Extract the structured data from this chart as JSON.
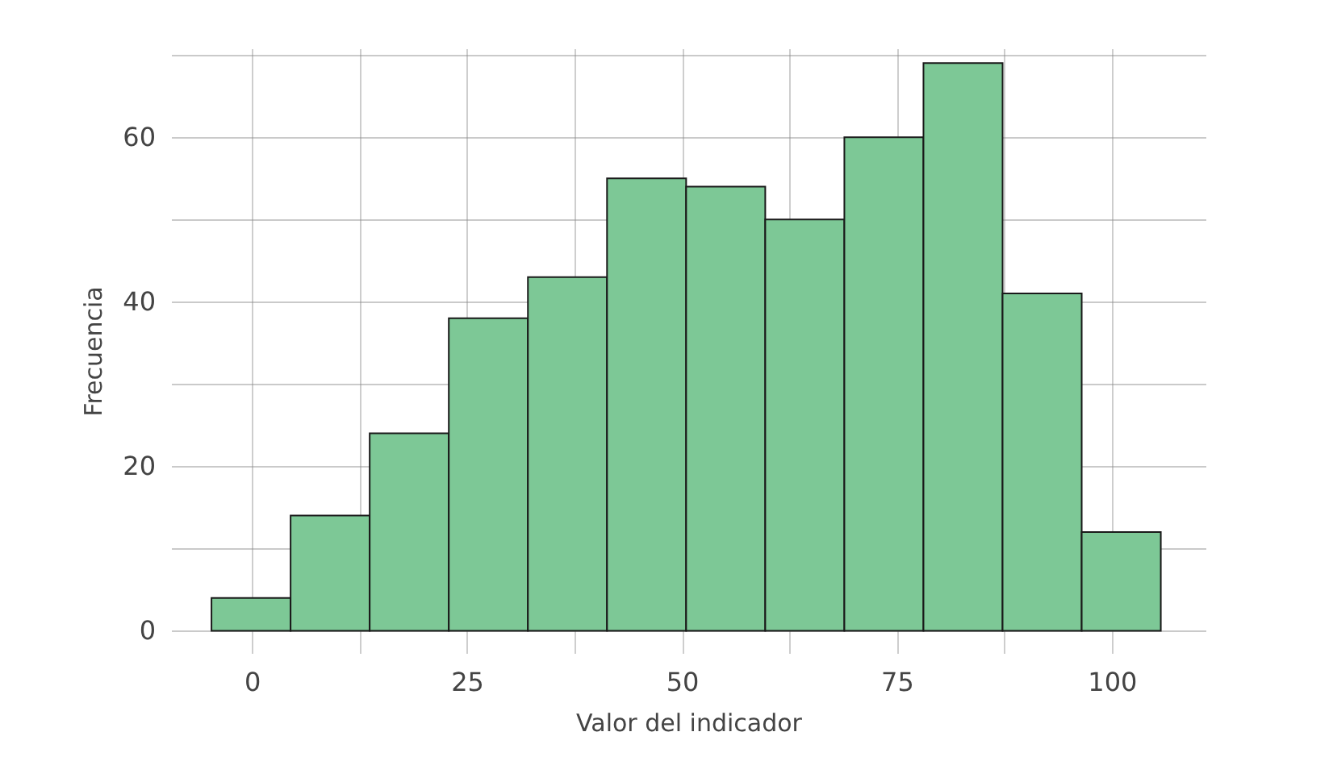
{
  "chart_data": {
    "type": "histogram",
    "xlabel": "Valor del indicador",
    "ylabel": "Frecuencia",
    "bins": [
      -4.7,
      4.5,
      13.7,
      22.9,
      32.1,
      41.3,
      50.5,
      59.7,
      68.9,
      78.1,
      87.3,
      96.5,
      105.7
    ],
    "values": [
      4,
      14,
      24,
      38,
      43,
      55,
      54,
      50,
      60,
      69,
      41,
      12
    ],
    "color": "#7dc896",
    "xlim": [
      -9.4,
      110.9
    ],
    "ylim": [
      -2.7,
      70.8
    ],
    "xticks": [
      0,
      {
        "value": 12.5,
        "label": null
      },
      25,
      {
        "value": 37.5,
        "label": null
      },
      50,
      {
        "value": 62.5,
        "label": null
      },
      75,
      {
        "value": 87.5,
        "label": null
      },
      100
    ],
    "yticks": [
      0,
      {
        "value": 10,
        "label": null
      },
      20,
      {
        "value": 30,
        "label": null
      },
      40,
      {
        "value": 50,
        "label": null
      },
      60,
      {
        "value": 70,
        "label": null
      }
    ],
    "grid": true
  }
}
